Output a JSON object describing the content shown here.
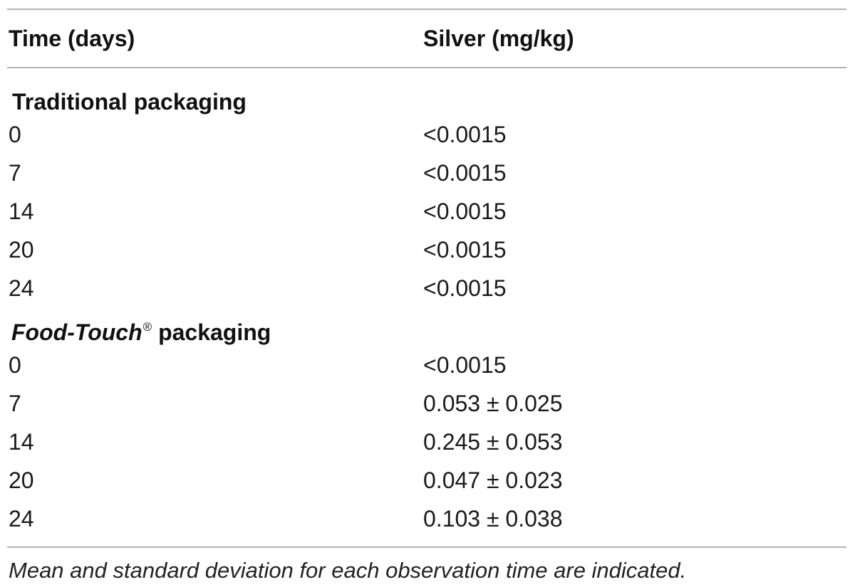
{
  "table": {
    "headers": {
      "time": "Time (days)",
      "silver": "Silver (mg/kg)"
    },
    "groups": [
      {
        "label_italic": "",
        "label_mark": "",
        "label_rest": "Traditional packaging",
        "rows": [
          {
            "time": "0",
            "silver": "<0.0015"
          },
          {
            "time": "7",
            "silver": "<0.0015"
          },
          {
            "time": "14",
            "silver": "<0.0015"
          },
          {
            "time": "20",
            "silver": "<0.0015"
          },
          {
            "time": "24",
            "silver": "<0.0015"
          }
        ]
      },
      {
        "label_italic": "Food-Touch",
        "label_mark": "®",
        "label_rest": " packaging",
        "rows": [
          {
            "time": "0",
            "silver": "<0.0015"
          },
          {
            "time": "7",
            "silver": "0.053 ± 0.025"
          },
          {
            "time": "14",
            "silver": "0.245 ± 0.053"
          },
          {
            "time": "20",
            "silver": "0.047 ± 0.023"
          },
          {
            "time": "24",
            "silver": "0.103 ± 0.038"
          }
        ]
      }
    ],
    "footnote": "Mean and standard deviation for each observation time are indicated."
  }
}
